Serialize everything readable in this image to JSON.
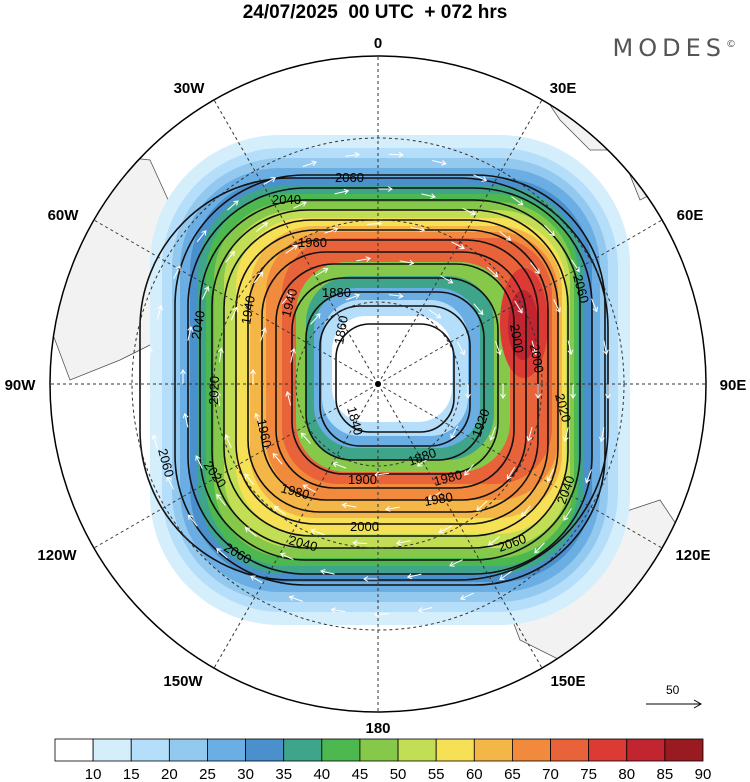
{
  "title": "24/07/2025  00 UTC  + 072 hrs",
  "brand": "MODES",
  "brand_mark": "©",
  "longitude_labels": {
    "n": "0",
    "nne": "30E",
    "ene": "60E",
    "e": "90E",
    "ese": "120E",
    "sse": "150E",
    "s": "180",
    "ssw": "150W",
    "wsw": "120W",
    "w": "90W",
    "wnw": "60W",
    "nnw": "30W"
  },
  "contour_labels": [
    "2060",
    "2040",
    "1960",
    "1880",
    "1860",
    "1840",
    "1940",
    "2040",
    "2020",
    "2060",
    "2020",
    "1960",
    "1900",
    "1880",
    "1920",
    "1980",
    "2000",
    "2020",
    "2040",
    "2060",
    "2060",
    "2040",
    "1980",
    "2000",
    "1980",
    "2060",
    "1940",
    "2000"
  ],
  "reference_vector": {
    "label": "50"
  },
  "colorbar": {
    "ticks": [
      "10",
      "15",
      "20",
      "25",
      "30",
      "35",
      "40",
      "45",
      "50",
      "55",
      "60",
      "65",
      "70",
      "75",
      "80",
      "85",
      "90"
    ],
    "colors": [
      "#ffffff",
      "#d5eefc",
      "#b5defa",
      "#94c9ef",
      "#6aaee3",
      "#4a90cc",
      "#3fa58a",
      "#4cb84f",
      "#85c84a",
      "#c2de55",
      "#f6e055",
      "#f5b648",
      "#f18a3c",
      "#e8623a",
      "#dc3a34",
      "#c02530",
      "#9a1a22"
    ]
  }
}
